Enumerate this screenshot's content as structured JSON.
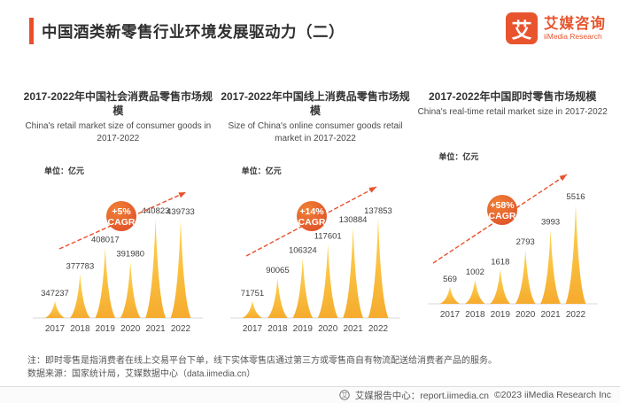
{
  "header": {
    "title": "中国酒类新零售行业环境发展驱动力（二）",
    "logo": {
      "mark": "艾",
      "name_cn": "艾媒咨询",
      "name_en": "iiMedia Research"
    }
  },
  "chart_data": [
    {
      "type": "bar",
      "title_cn": "2017-2022年中国社会消费品零售市场规模",
      "title_en": "China's retail market size of consumer goods in 2017-2022",
      "unit_label": "单位：亿元",
      "categories": [
        "2017",
        "2018",
        "2019",
        "2020",
        "2021",
        "2022"
      ],
      "values": [
        347237,
        377783,
        408017,
        391980,
        440823,
        439733
      ],
      "cagr_label": "+5%",
      "cagr_sub": "CAGR",
      "legend": "none",
      "grid": "off"
    },
    {
      "type": "bar",
      "title_cn": "2017-2022年中国线上消费品零售市场规模",
      "title_en": "Size of China's online consumer goods retail market in 2017-2022",
      "unit_label": "单位：亿元",
      "categories": [
        "2017",
        "2018",
        "2019",
        "2020",
        "2021",
        "2022"
      ],
      "values": [
        71751,
        90065,
        106324,
        117601,
        130884,
        137853
      ],
      "cagr_label": "+14%",
      "cagr_sub": "CAGR",
      "legend": "none",
      "grid": "off"
    },
    {
      "type": "bar",
      "title_cn": "2017-2022年中国即时零售市场规模",
      "title_en": "China's real-time retail market size in 2017-2022",
      "unit_label": "单位：亿元",
      "categories": [
        "2017",
        "2018",
        "2019",
        "2020",
        "2021",
        "2022"
      ],
      "values": [
        569,
        1002,
        1618,
        2793,
        3993,
        5516
      ],
      "cagr_label": "+58%",
      "cagr_sub": "CAGR",
      "legend": "none",
      "grid": "off"
    }
  ],
  "footer": {
    "note": "注：即时零售是指消费者在线上交易平台下单，线下实体零售店通过第三方或零售商自有物流配送给消费者产品的服务。",
    "source": "数据来源：国家统计局，艾媒数据中心（data.iimedia.cn）",
    "report_center": "艾媒报告中心：report.iimedia.cn",
    "copyright": "©2023  iiMedia Research Inc",
    "report_icon_glyph": "艾"
  },
  "colors": {
    "accent": "#e8502b",
    "peak_top": "#ffd553",
    "peak_bottom": "#f5ab2e",
    "badge_light": "#f08136",
    "badge_dark": "#df4f28",
    "axis_line": "#d8d8d8"
  }
}
